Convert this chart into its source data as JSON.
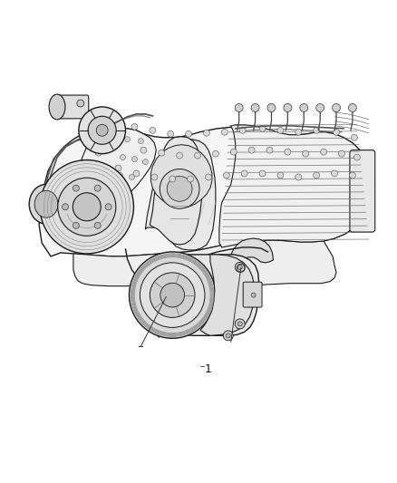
{
  "background_color": "#ffffff",
  "fig_width": 4.38,
  "fig_height": 5.33,
  "dpi": 100,
  "label_number": "1",
  "line_color": "#1a1a1a",
  "engine_gray": "#888888",
  "light_gray": "#cccccc",
  "mid_gray": "#999999",
  "dark_gray": "#555555",
  "label_font_size": 9,
  "callout_line_color": "#333333"
}
